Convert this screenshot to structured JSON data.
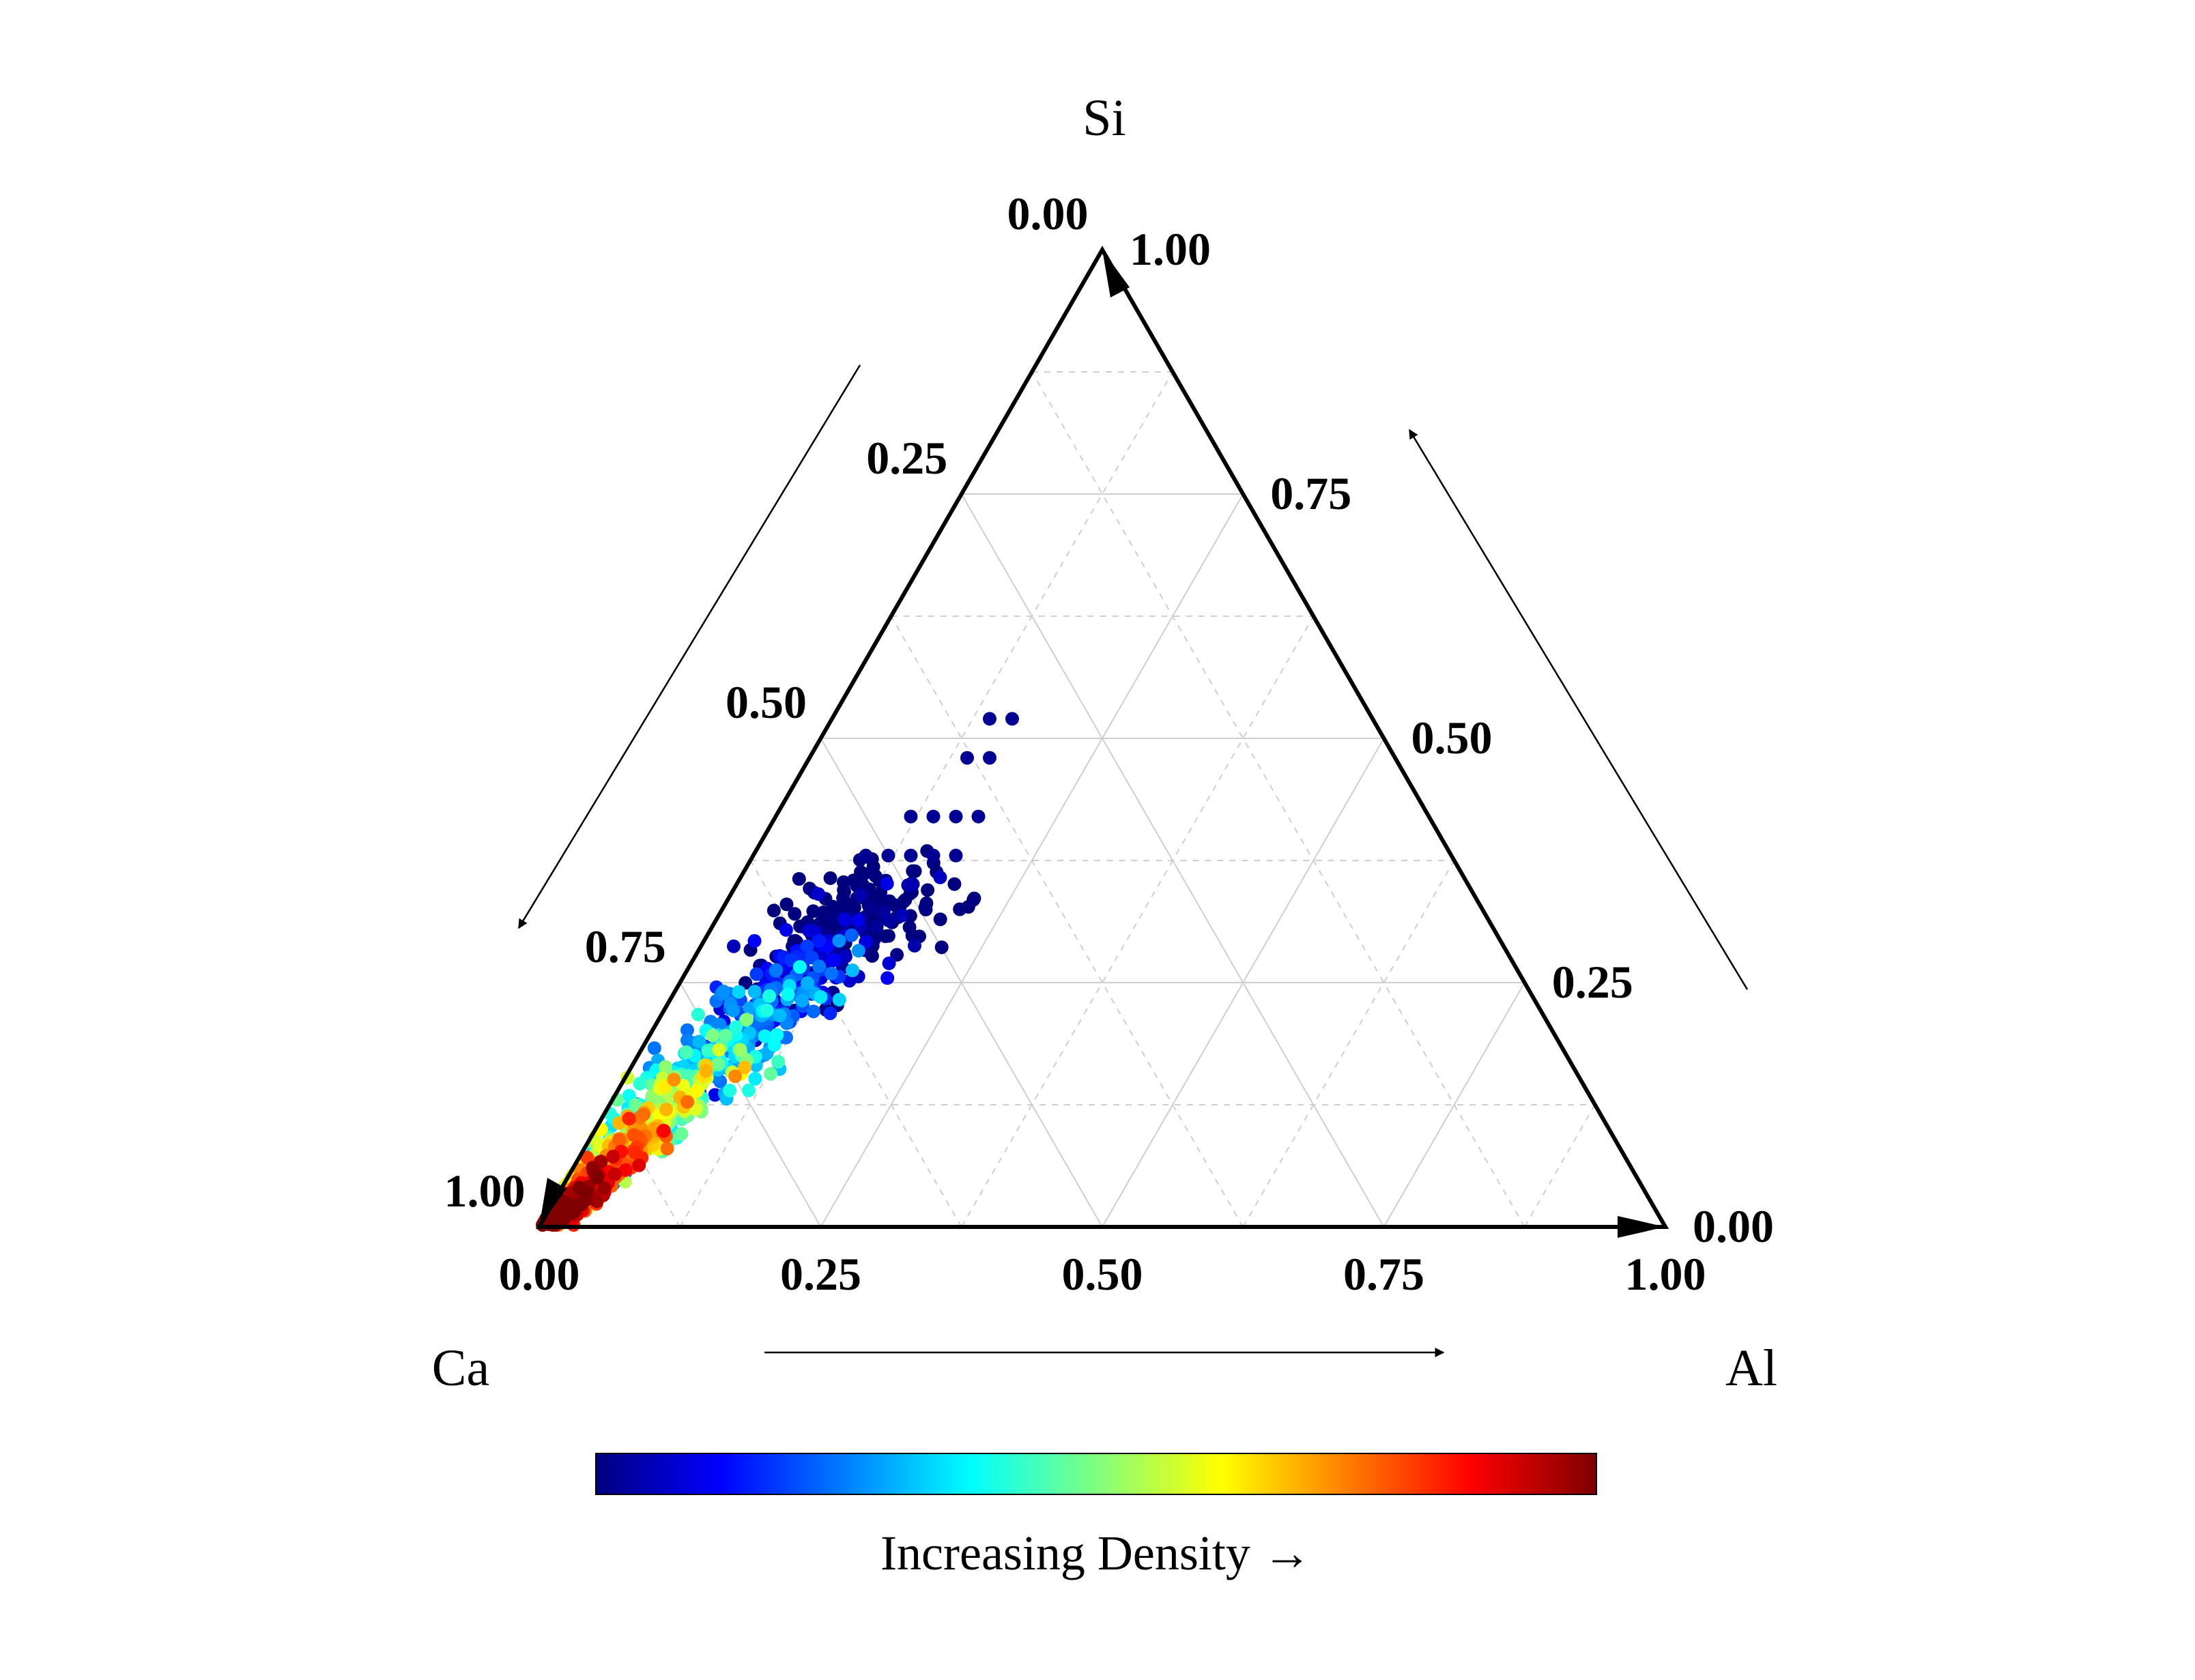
{
  "chart_data": {
    "type": "scatter",
    "subtype": "ternary",
    "axes": {
      "top_vertex": "Si",
      "left_vertex": "Ca",
      "right_vertex": "Al",
      "range": [
        0,
        1
      ],
      "ticks": [
        "0.00",
        "0.25",
        "0.50",
        "0.75",
        "1.00"
      ]
    },
    "grid": true,
    "colorbar": {
      "label": "Increasing Density →",
      "colormap": "jet",
      "colors": [
        "#00007f",
        "#0000ff",
        "#007fff",
        "#00ffff",
        "#7fff7f",
        "#ffff00",
        "#ff7f00",
        "#ff0000",
        "#7f0000"
      ]
    },
    "point_color_scale": "density",
    "points_description_note": null,
    "series": [
      {
        "points": [
          {
            "Ca": 0.5,
            "Al": 0.12,
            "Si": 0.38,
            "d": 0.02
          },
          {
            "Ca": 0.48,
            "Al": 0.14,
            "Si": 0.38,
            "d": 0.02
          },
          {
            "Ca": 0.46,
            "Al": 0.12,
            "Si": 0.42,
            "d": 0.02
          },
          {
            "Ca": 0.44,
            "Al": 0.14,
            "Si": 0.42,
            "d": 0.02
          },
          {
            "Ca": 0.42,
            "Al": 0.16,
            "Si": 0.42,
            "d": 0.02
          },
          {
            "Ca": 0.44,
            "Al": 0.18,
            "Si": 0.38,
            "d": 0.02
          },
          {
            "Ca": 0.4,
            "Al": 0.18,
            "Si": 0.42,
            "d": 0.02
          },
          {
            "Ca": 0.46,
            "Al": 0.16,
            "Si": 0.38,
            "d": 0.02
          },
          {
            "Ca": 0.52,
            "Al": 0.1,
            "Si": 0.38,
            "d": 0.02
          },
          {
            "Ca": 0.38,
            "Al": 0.14,
            "Si": 0.48,
            "d": 0.02
          },
          {
            "Ca": 0.36,
            "Al": 0.16,
            "Si": 0.48,
            "d": 0.02
          },
          {
            "Ca": 0.34,
            "Al": 0.14,
            "Si": 0.52,
            "d": 0.02
          },
          {
            "Ca": 0.32,
            "Al": 0.16,
            "Si": 0.52,
            "d": 0.02
          }
        ]
      }
    ],
    "cloud": {
      "count": 1500,
      "core": {
        "Ca_center": 0.95,
        "Al_center": 0.03
      },
      "spine_from": {
        "Ca": 0.98,
        "Al": 0.01,
        "Si": 0.01
      },
      "spine_to": {
        "Ca": 0.5,
        "Al": 0.14,
        "Si": 0.36
      }
    }
  }
}
